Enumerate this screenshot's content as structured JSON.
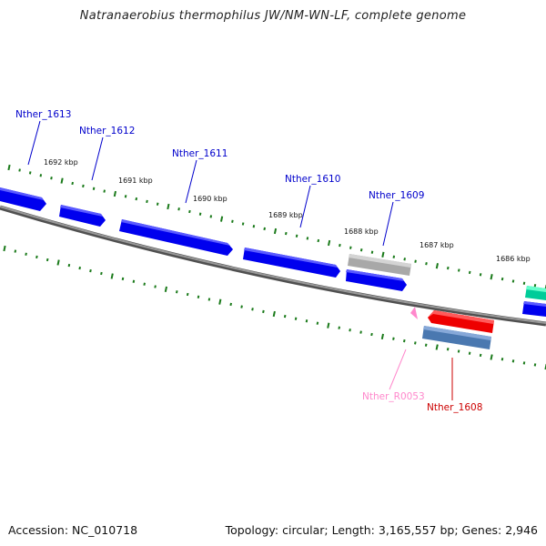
{
  "title": "Natranaerobius thermophilus JW/NM-WN-LF, complete genome",
  "footer": {
    "accession": "Accession: NC_010718",
    "summary": "Topology: circular; Length: 3,165,557 bp; Genes: 2,946"
  },
  "colors": {
    "cds": "#0000ee",
    "cds_light": "#5a5aff",
    "highlight": "#ee0000",
    "pseudo": "#a8a8a8",
    "rrna": "#4a78b0",
    "rrna_label": "#ff88cc",
    "green_gene": "#00cc99",
    "backbone": "#808080",
    "ticks": "#1a7a1a"
  },
  "kbp_labels": [
    "1692 kbp",
    "1691 kbp",
    "1690 kbp",
    "1689 kbp",
    "1688 kbp",
    "1687 kbp",
    "1686 kbp"
  ],
  "gene_labels": {
    "nther_1613": "Nther_1613",
    "nther_1612": "Nther_1612",
    "nther_1611": "Nther_1611",
    "nther_1610": "Nther_1610",
    "nther_1609": "Nther_1609",
    "nther_r0053": "Nther_R0053",
    "nther_1608": "Nther_1608"
  }
}
